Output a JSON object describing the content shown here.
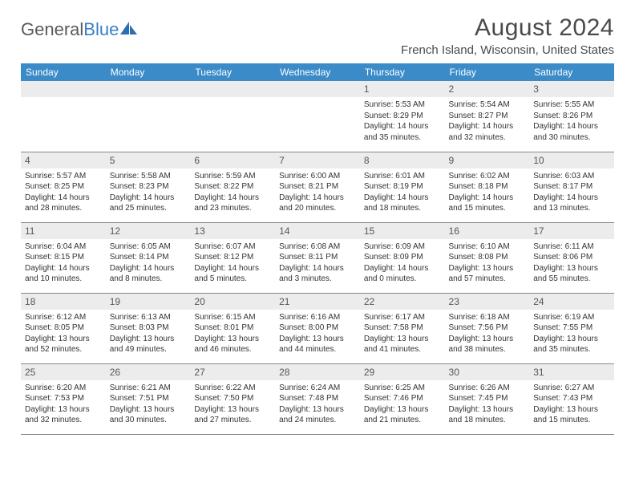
{
  "brand": {
    "part1": "General",
    "part2": "Blue"
  },
  "title": "August 2024",
  "location": "French Island, Wisconsin, United States",
  "colors": {
    "header_bg": "#3b8bc9",
    "header_text": "#ffffff",
    "daynum_bg": "#ececec",
    "cell_border": "#888888",
    "body_text": "#333333",
    "title_text": "#4a4a4a",
    "brand_gray": "#5a5a5a",
    "brand_blue": "#3b7fc4",
    "page_bg": "#ffffff"
  },
  "daysOfWeek": [
    "Sunday",
    "Monday",
    "Tuesday",
    "Wednesday",
    "Thursday",
    "Friday",
    "Saturday"
  ],
  "weeks": [
    [
      null,
      null,
      null,
      null,
      {
        "n": "1",
        "sr": "Sunrise: 5:53 AM",
        "ss": "Sunset: 8:29 PM",
        "d1": "Daylight: 14 hours",
        "d2": "and 35 minutes."
      },
      {
        "n": "2",
        "sr": "Sunrise: 5:54 AM",
        "ss": "Sunset: 8:27 PM",
        "d1": "Daylight: 14 hours",
        "d2": "and 32 minutes."
      },
      {
        "n": "3",
        "sr": "Sunrise: 5:55 AM",
        "ss": "Sunset: 8:26 PM",
        "d1": "Daylight: 14 hours",
        "d2": "and 30 minutes."
      }
    ],
    [
      {
        "n": "4",
        "sr": "Sunrise: 5:57 AM",
        "ss": "Sunset: 8:25 PM",
        "d1": "Daylight: 14 hours",
        "d2": "and 28 minutes."
      },
      {
        "n": "5",
        "sr": "Sunrise: 5:58 AM",
        "ss": "Sunset: 8:23 PM",
        "d1": "Daylight: 14 hours",
        "d2": "and 25 minutes."
      },
      {
        "n": "6",
        "sr": "Sunrise: 5:59 AM",
        "ss": "Sunset: 8:22 PM",
        "d1": "Daylight: 14 hours",
        "d2": "and 23 minutes."
      },
      {
        "n": "7",
        "sr": "Sunrise: 6:00 AM",
        "ss": "Sunset: 8:21 PM",
        "d1": "Daylight: 14 hours",
        "d2": "and 20 minutes."
      },
      {
        "n": "8",
        "sr": "Sunrise: 6:01 AM",
        "ss": "Sunset: 8:19 PM",
        "d1": "Daylight: 14 hours",
        "d2": "and 18 minutes."
      },
      {
        "n": "9",
        "sr": "Sunrise: 6:02 AM",
        "ss": "Sunset: 8:18 PM",
        "d1": "Daylight: 14 hours",
        "d2": "and 15 minutes."
      },
      {
        "n": "10",
        "sr": "Sunrise: 6:03 AM",
        "ss": "Sunset: 8:17 PM",
        "d1": "Daylight: 14 hours",
        "d2": "and 13 minutes."
      }
    ],
    [
      {
        "n": "11",
        "sr": "Sunrise: 6:04 AM",
        "ss": "Sunset: 8:15 PM",
        "d1": "Daylight: 14 hours",
        "d2": "and 10 minutes."
      },
      {
        "n": "12",
        "sr": "Sunrise: 6:05 AM",
        "ss": "Sunset: 8:14 PM",
        "d1": "Daylight: 14 hours",
        "d2": "and 8 minutes."
      },
      {
        "n": "13",
        "sr": "Sunrise: 6:07 AM",
        "ss": "Sunset: 8:12 PM",
        "d1": "Daylight: 14 hours",
        "d2": "and 5 minutes."
      },
      {
        "n": "14",
        "sr": "Sunrise: 6:08 AM",
        "ss": "Sunset: 8:11 PM",
        "d1": "Daylight: 14 hours",
        "d2": "and 3 minutes."
      },
      {
        "n": "15",
        "sr": "Sunrise: 6:09 AM",
        "ss": "Sunset: 8:09 PM",
        "d1": "Daylight: 14 hours",
        "d2": "and 0 minutes."
      },
      {
        "n": "16",
        "sr": "Sunrise: 6:10 AM",
        "ss": "Sunset: 8:08 PM",
        "d1": "Daylight: 13 hours",
        "d2": "and 57 minutes."
      },
      {
        "n": "17",
        "sr": "Sunrise: 6:11 AM",
        "ss": "Sunset: 8:06 PM",
        "d1": "Daylight: 13 hours",
        "d2": "and 55 minutes."
      }
    ],
    [
      {
        "n": "18",
        "sr": "Sunrise: 6:12 AM",
        "ss": "Sunset: 8:05 PM",
        "d1": "Daylight: 13 hours",
        "d2": "and 52 minutes."
      },
      {
        "n": "19",
        "sr": "Sunrise: 6:13 AM",
        "ss": "Sunset: 8:03 PM",
        "d1": "Daylight: 13 hours",
        "d2": "and 49 minutes."
      },
      {
        "n": "20",
        "sr": "Sunrise: 6:15 AM",
        "ss": "Sunset: 8:01 PM",
        "d1": "Daylight: 13 hours",
        "d2": "and 46 minutes."
      },
      {
        "n": "21",
        "sr": "Sunrise: 6:16 AM",
        "ss": "Sunset: 8:00 PM",
        "d1": "Daylight: 13 hours",
        "d2": "and 44 minutes."
      },
      {
        "n": "22",
        "sr": "Sunrise: 6:17 AM",
        "ss": "Sunset: 7:58 PM",
        "d1": "Daylight: 13 hours",
        "d2": "and 41 minutes."
      },
      {
        "n": "23",
        "sr": "Sunrise: 6:18 AM",
        "ss": "Sunset: 7:56 PM",
        "d1": "Daylight: 13 hours",
        "d2": "and 38 minutes."
      },
      {
        "n": "24",
        "sr": "Sunrise: 6:19 AM",
        "ss": "Sunset: 7:55 PM",
        "d1": "Daylight: 13 hours",
        "d2": "and 35 minutes."
      }
    ],
    [
      {
        "n": "25",
        "sr": "Sunrise: 6:20 AM",
        "ss": "Sunset: 7:53 PM",
        "d1": "Daylight: 13 hours",
        "d2": "and 32 minutes."
      },
      {
        "n": "26",
        "sr": "Sunrise: 6:21 AM",
        "ss": "Sunset: 7:51 PM",
        "d1": "Daylight: 13 hours",
        "d2": "and 30 minutes."
      },
      {
        "n": "27",
        "sr": "Sunrise: 6:22 AM",
        "ss": "Sunset: 7:50 PM",
        "d1": "Daylight: 13 hours",
        "d2": "and 27 minutes."
      },
      {
        "n": "28",
        "sr": "Sunrise: 6:24 AM",
        "ss": "Sunset: 7:48 PM",
        "d1": "Daylight: 13 hours",
        "d2": "and 24 minutes."
      },
      {
        "n": "29",
        "sr": "Sunrise: 6:25 AM",
        "ss": "Sunset: 7:46 PM",
        "d1": "Daylight: 13 hours",
        "d2": "and 21 minutes."
      },
      {
        "n": "30",
        "sr": "Sunrise: 6:26 AM",
        "ss": "Sunset: 7:45 PM",
        "d1": "Daylight: 13 hours",
        "d2": "and 18 minutes."
      },
      {
        "n": "31",
        "sr": "Sunrise: 6:27 AM",
        "ss": "Sunset: 7:43 PM",
        "d1": "Daylight: 13 hours",
        "d2": "and 15 minutes."
      }
    ]
  ]
}
